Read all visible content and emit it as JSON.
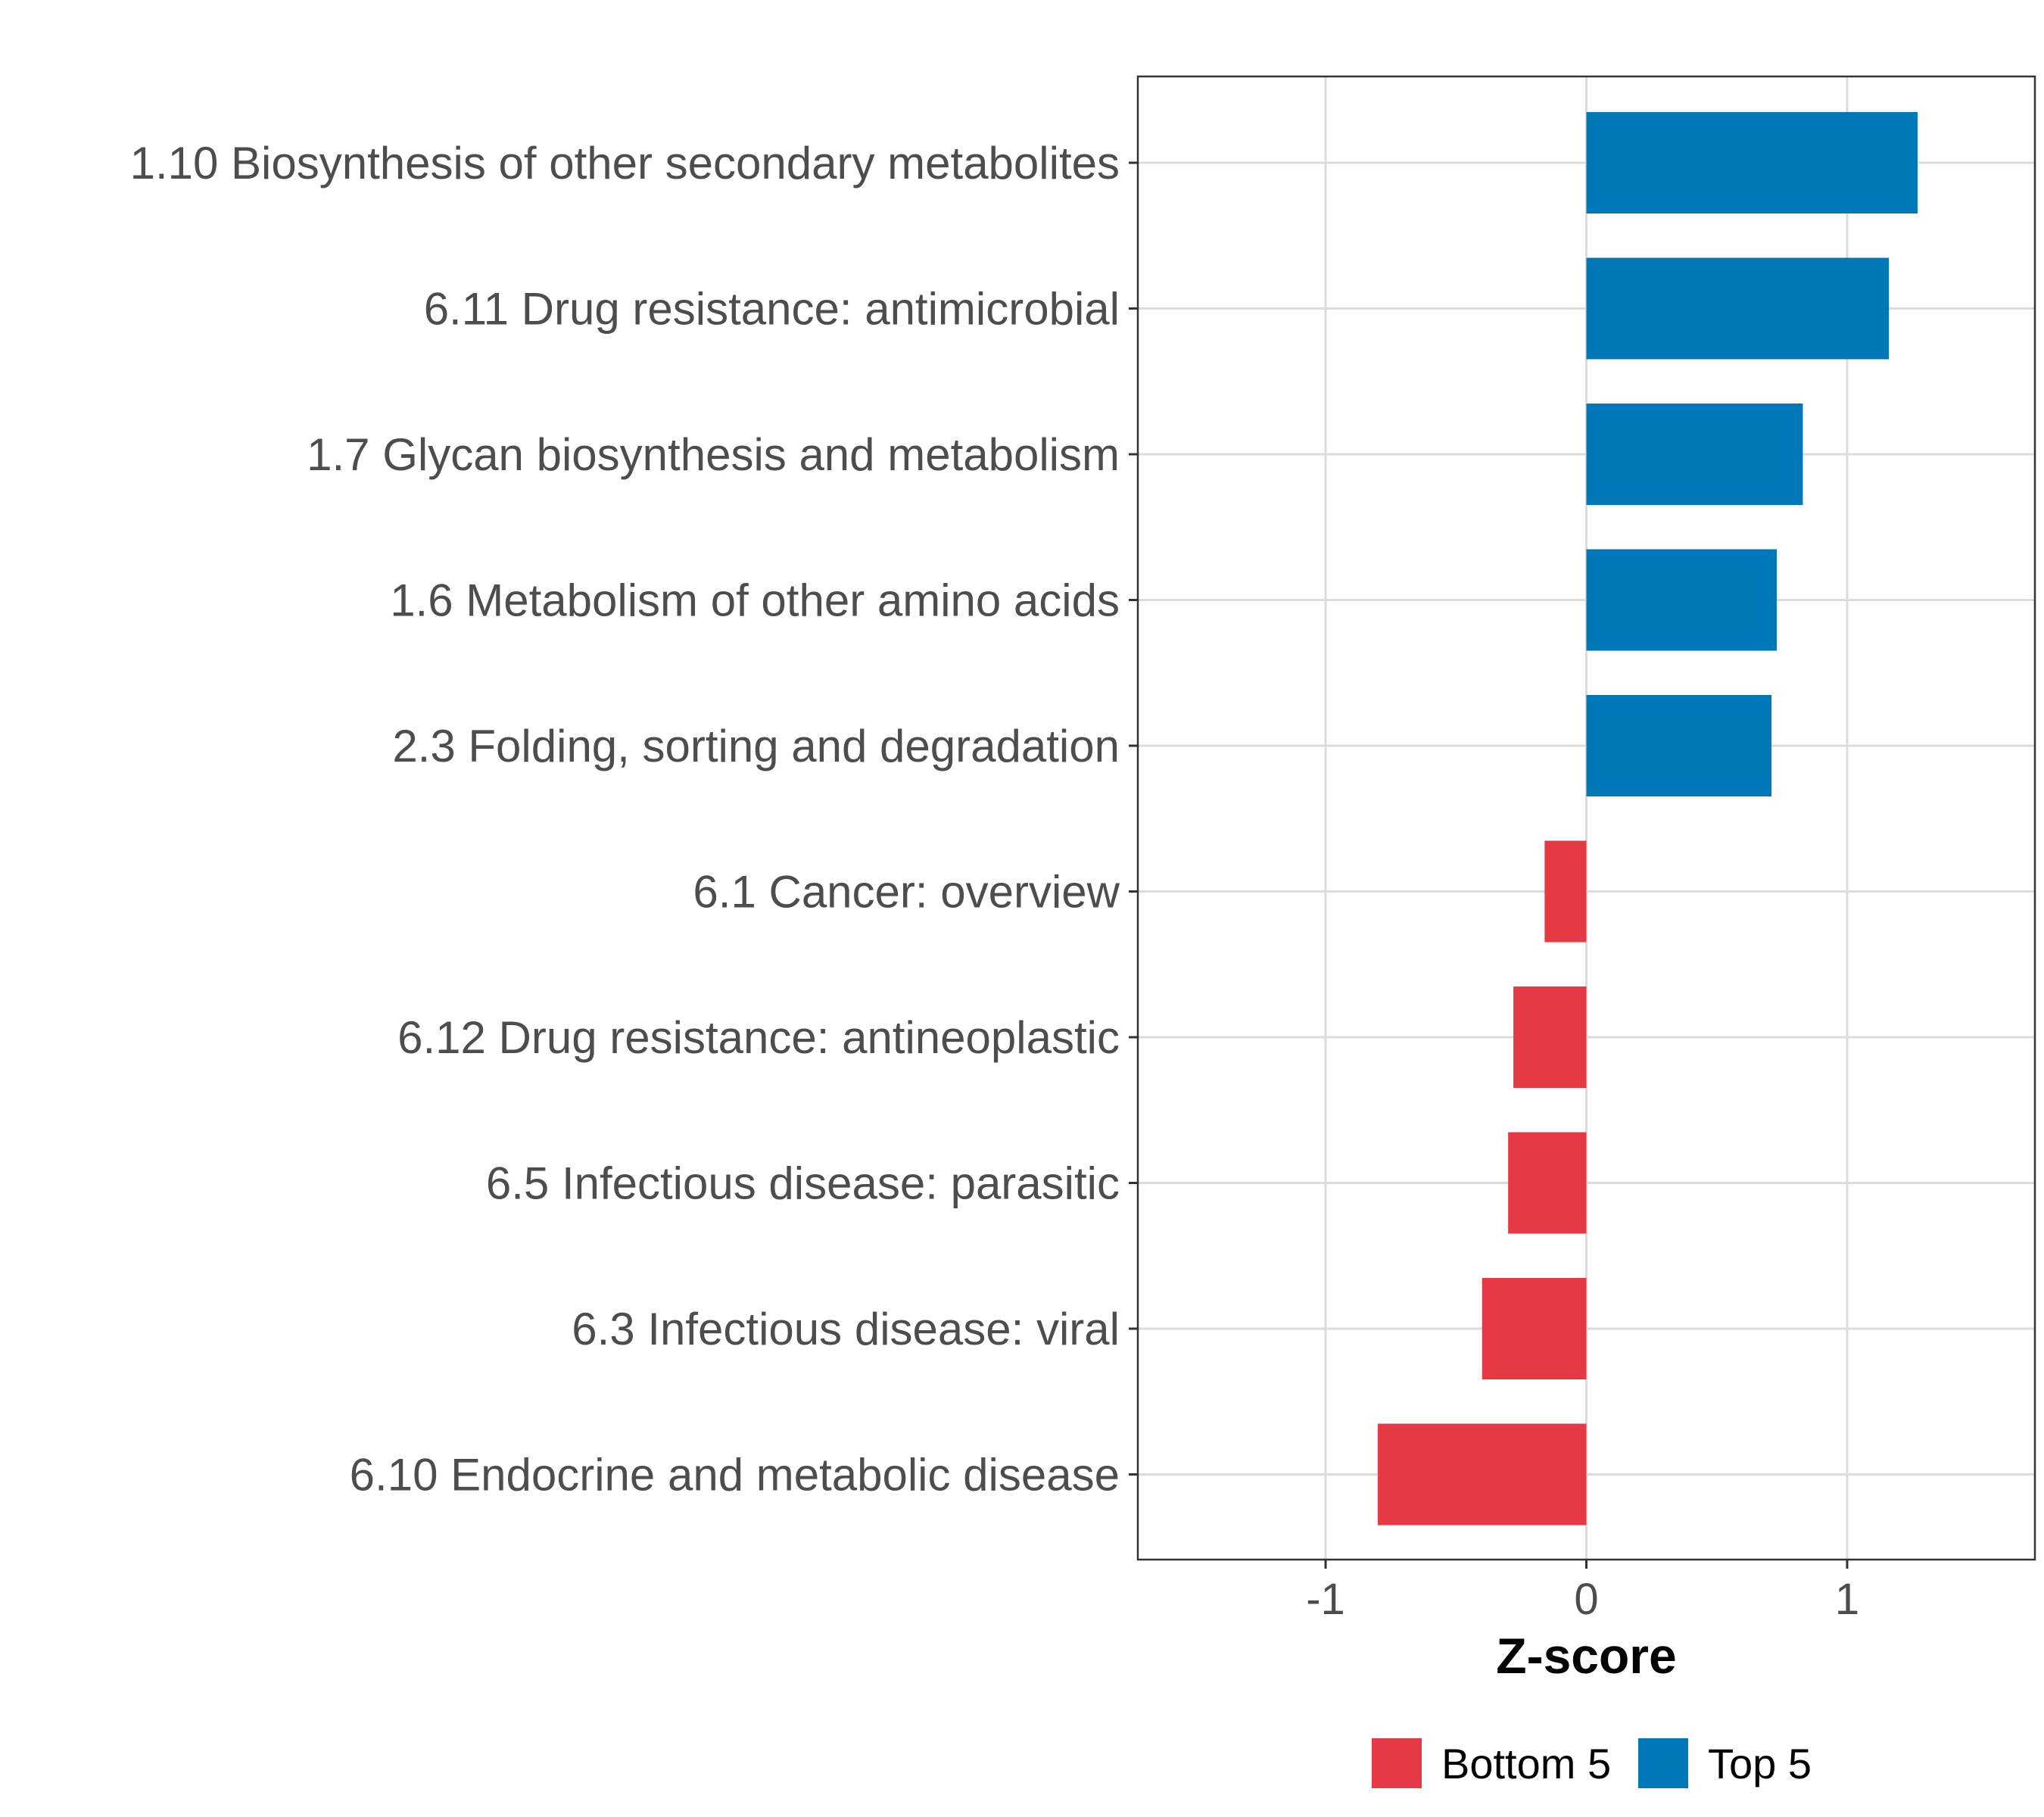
{
  "chart_data": {
    "type": "bar",
    "orientation": "horizontal",
    "title": "",
    "xlabel": "Z-score",
    "ylabel": "",
    "xlim": [
      -1.72,
      1.72
    ],
    "xticks": [
      -1,
      0,
      1
    ],
    "xtick_labels": [
      "-1",
      "0",
      "1"
    ],
    "grid": true,
    "legend_position": "bottom",
    "categories": [
      "1.10 Biosynthesis of other secondary metabolites",
      "6.11 Drug resistance: antimicrobial",
      "1.7 Glycan biosynthesis and metabolism",
      "1.6 Metabolism of other amino acids",
      "2.3 Folding, sorting and degradation",
      "6.1 Cancer: overview",
      "6.12 Drug resistance: antineoplastic",
      "6.5 Infectious disease: parasitic",
      "6.3 Infectious disease: viral",
      "6.10 Endocrine and metabolic disease"
    ],
    "values": [
      1.27,
      1.16,
      0.83,
      0.73,
      0.71,
      -0.16,
      -0.28,
      -0.3,
      -0.4,
      -0.8
    ],
    "groups": [
      "Top 5",
      "Top 5",
      "Top 5",
      "Top 5",
      "Top 5",
      "Bottom 5",
      "Bottom 5",
      "Bottom 5",
      "Bottom 5",
      "Bottom 5"
    ],
    "legend": [
      {
        "label": "Bottom 5",
        "color": "#E63946"
      },
      {
        "label": "Top 5",
        "color": "#0077B6"
      }
    ]
  }
}
